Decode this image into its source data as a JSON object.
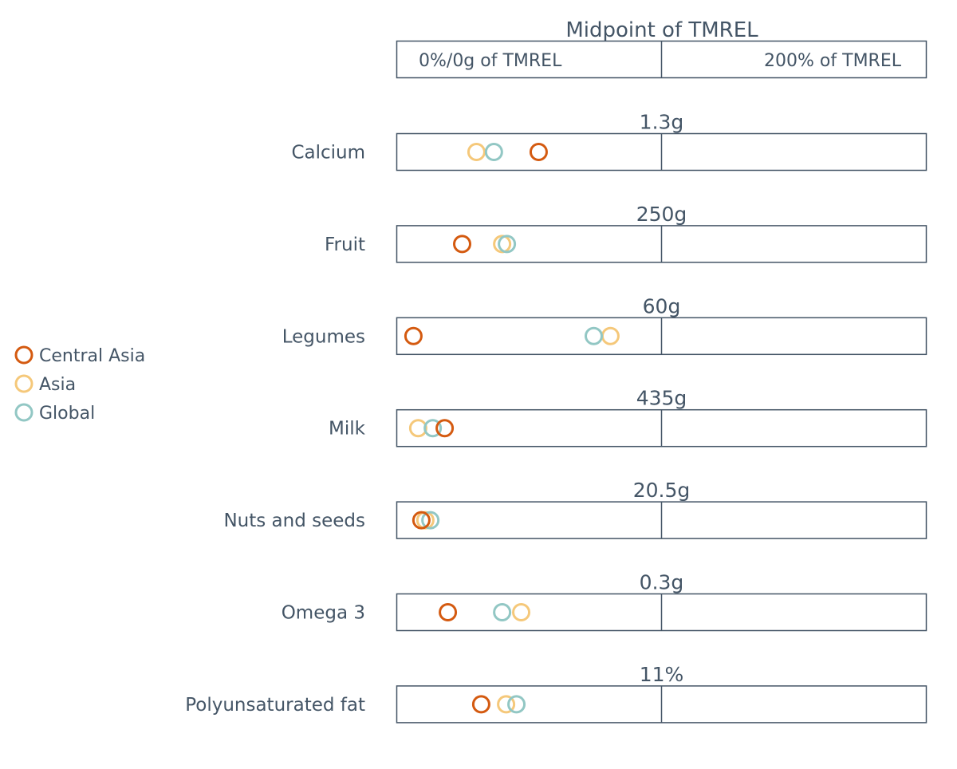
{
  "chart_data": {
    "type": "scatter",
    "header": {
      "title": "Midpoint of TMREL",
      "left_label": "0%/0g of TMREL",
      "right_label": "200% of TMREL"
    },
    "x_unit": "percent of TMREL",
    "xlim": [
      0,
      200
    ],
    "legend_position": "left",
    "series": [
      {
        "name": "Central Asia",
        "color": "#d45a10"
      },
      {
        "name": "Asia",
        "color": "#f5c87a"
      },
      {
        "name": "Global",
        "color": "#92c7c4"
      }
    ],
    "rows": [
      {
        "label": "Calcium",
        "midpoint": "1.3g",
        "values": {
          "Central Asia": 53.6,
          "Asia": 30.1,
          "Global": 36.7
        }
      },
      {
        "label": "Fruit",
        "midpoint": "250g",
        "values": {
          "Central Asia": 24.7,
          "Asia": 39.8,
          "Global": 41.6
        }
      },
      {
        "label": "Legumes",
        "midpoint": "60g",
        "values": {
          "Central Asia": 6.3,
          "Asia": 80.7,
          "Global": 74.4
        }
      },
      {
        "label": "Milk",
        "midpoint": "435g",
        "values": {
          "Central Asia": 18.1,
          "Asia": 8.1,
          "Global": 13.6
        }
      },
      {
        "label": "Nuts and seeds",
        "midpoint": "20.5g",
        "values": {
          "Central Asia": 9.3,
          "Asia": 10.8,
          "Global": 12.7
        }
      },
      {
        "label": "Omega 3",
        "midpoint": "0.3g",
        "values": {
          "Central Asia": 19.3,
          "Asia": 47.0,
          "Global": 39.8
        }
      },
      {
        "label": "Polyunsaturated fat",
        "midpoint": "11%",
        "values": {
          "Central Asia": 31.9,
          "Asia": 41.3,
          "Global": 45.2
        }
      }
    ]
  }
}
